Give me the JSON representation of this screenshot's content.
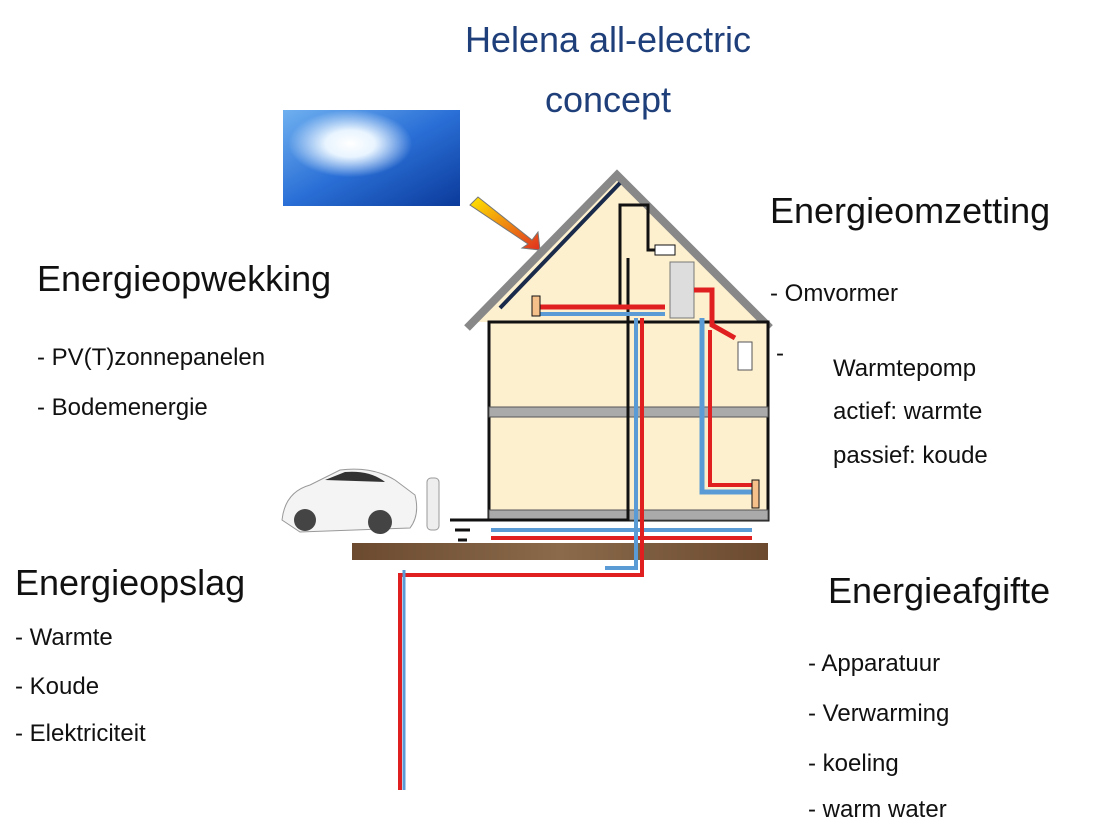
{
  "title": "Helena all-electric concept",
  "energieopwekking": {
    "heading": "Energieopwekking",
    "items": [
      "- PV(T)zonnepanelen",
      "- Bodemenergie"
    ]
  },
  "energieomzetting": {
    "heading": "Energieomzetting",
    "items": [
      "- Omvormer"
    ],
    "heatpump": {
      "bullet": "-",
      "lines": [
        "Warmtepomp",
        "actief: warmte",
        "passief:  koude"
      ]
    }
  },
  "energieopslag": {
    "heading": "Energieopslag",
    "items": [
      "- Warmte",
      "- Koude",
      "- Elektriciteit"
    ]
  },
  "energieafgifte": {
    "heading": "Energieafgifte",
    "items": [
      "- Apparatuur",
      "- Verwarming",
      "- koeling",
      "- warm water"
    ]
  }
}
